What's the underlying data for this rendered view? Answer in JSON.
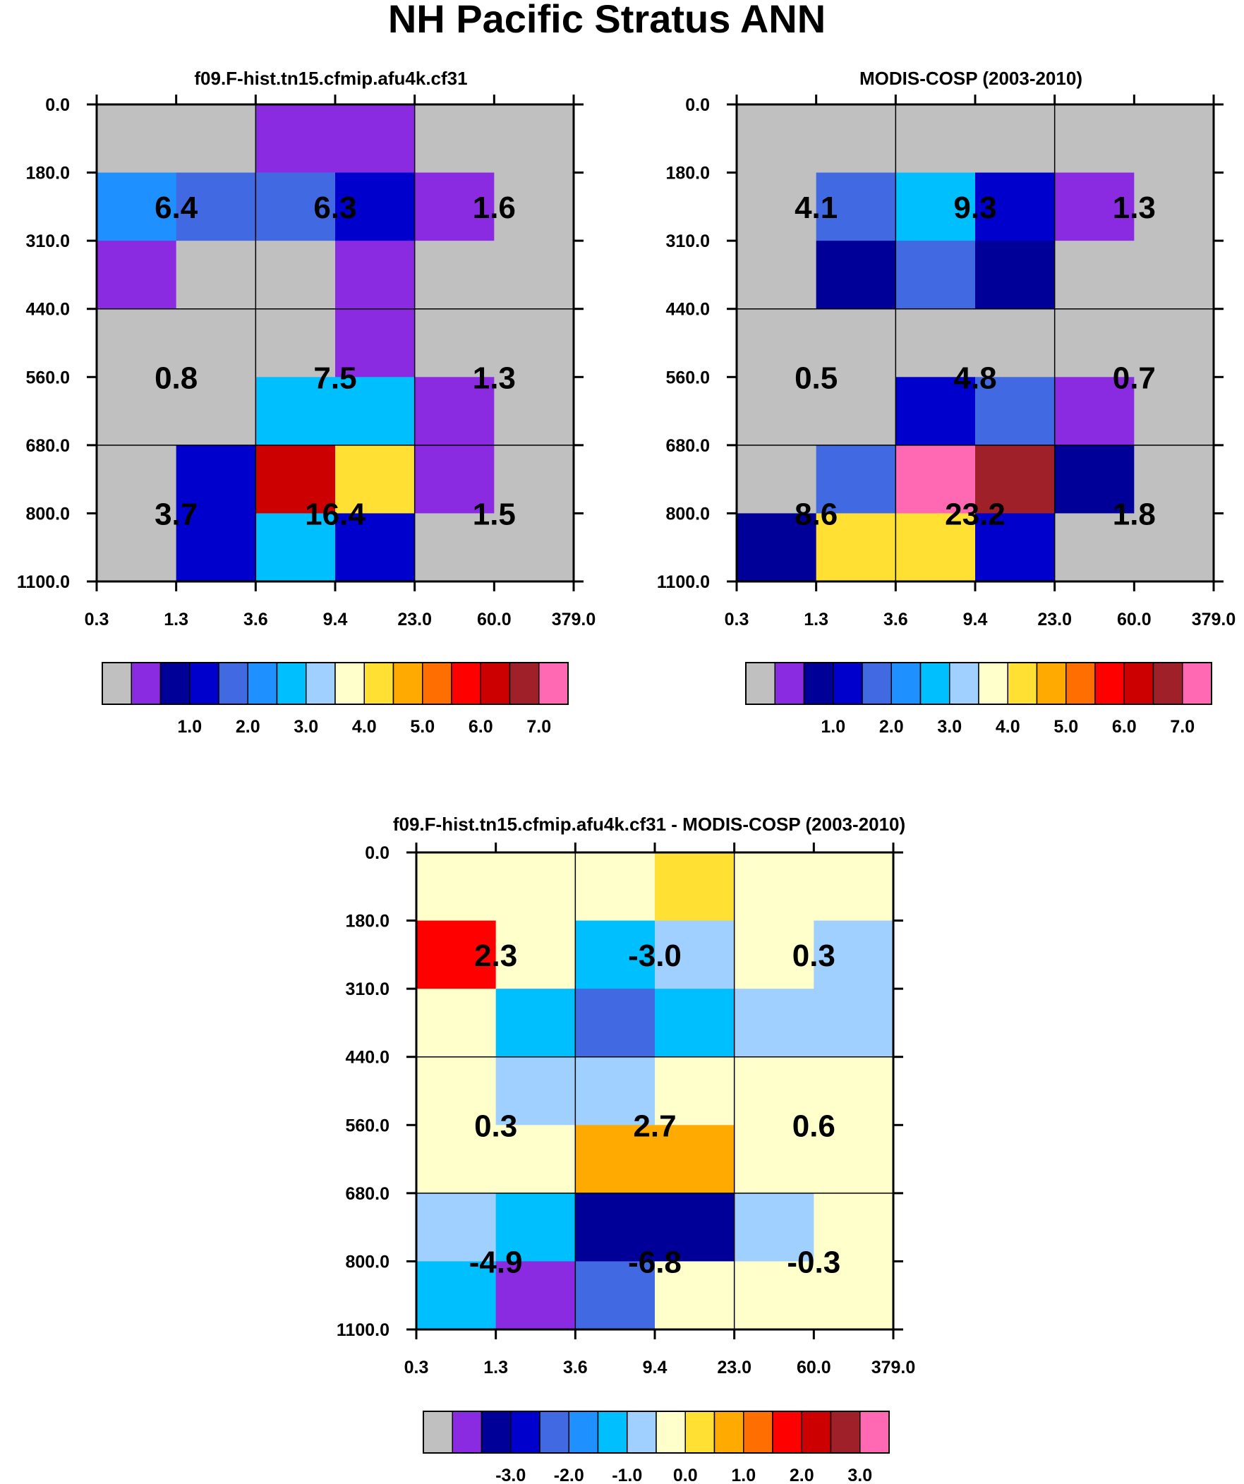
{
  "title": "NH Pacific Stratus ANN",
  "palette": [
    "#c0c0c0",
    "#8a2be2",
    "#000099",
    "#0000cd",
    "#4169e1",
    "#1e90ff",
    "#00bfff",
    "#a0d0ff",
    "#ffffcc",
    "#ffe033",
    "#ffaa00",
    "#ff6e00",
    "#ff0000",
    "#cc0000",
    "#a0202a",
    "#ff69b4"
  ],
  "chart_data": [
    {
      "type": "heatmap",
      "title": "f09.F-hist.tn15.cfmip.afu4k.cf31",
      "x_tick_labels": [
        "0.3",
        "1.3",
        "3.6",
        "9.4",
        "23.0",
        "60.0",
        "379.0"
      ],
      "y_tick_labels": [
        "0.0",
        "180.0",
        "310.0",
        "440.0",
        "560.0",
        "680.0",
        "800.0",
        "1100.0"
      ],
      "cells": [
        [
          0,
          0,
          1,
          1,
          0,
          0
        ],
        [
          5,
          4,
          4,
          3,
          1,
          0
        ],
        [
          1,
          0,
          0,
          1,
          0,
          0
        ],
        [
          0,
          0,
          0,
          1,
          0,
          0
        ],
        [
          0,
          0,
          6,
          6,
          1,
          0
        ],
        [
          0,
          3,
          13,
          9,
          1,
          0
        ],
        [
          0,
          3,
          6,
          3,
          0,
          0
        ]
      ],
      "block_labels": [
        "6.4",
        "6.3",
        "1.6",
        "0.8",
        "7.5",
        "1.3",
        "3.7",
        "16.4",
        "1.5"
      ],
      "colorbar_labels": [
        "1.0",
        "2.0",
        "3.0",
        "4.0",
        "5.0",
        "6.0",
        "7.0"
      ]
    },
    {
      "type": "heatmap",
      "title": "MODIS-COSP (2003-2010)",
      "x_tick_labels": [
        "0.3",
        "1.3",
        "3.6",
        "9.4",
        "23.0",
        "60.0",
        "379.0"
      ],
      "y_tick_labels": [
        "0.0",
        "180.0",
        "310.0",
        "440.0",
        "560.0",
        "680.0",
        "800.0",
        "1100.0"
      ],
      "cells": [
        [
          0,
          0,
          0,
          0,
          0,
          0
        ],
        [
          0,
          4,
          6,
          3,
          1,
          0
        ],
        [
          0,
          2,
          4,
          2,
          0,
          0
        ],
        [
          0,
          0,
          0,
          0,
          0,
          0
        ],
        [
          0,
          0,
          3,
          4,
          1,
          0
        ],
        [
          0,
          4,
          15,
          14,
          2,
          0
        ],
        [
          2,
          9,
          9,
          3,
          0,
          0
        ]
      ],
      "block_labels": [
        "4.1",
        "9.3",
        "1.3",
        "0.5",
        "4.8",
        "0.7",
        "8.6",
        "23.2",
        "1.8"
      ],
      "colorbar_labels": [
        "1.0",
        "2.0",
        "3.0",
        "4.0",
        "5.0",
        "6.0",
        "7.0"
      ]
    },
    {
      "type": "heatmap",
      "title": "f09.F-hist.tn15.cfmip.afu4k.cf31 - MODIS-COSP (2003-2010)",
      "x_tick_labels": [
        "0.3",
        "1.3",
        "3.6",
        "9.4",
        "23.0",
        "60.0",
        "379.0"
      ],
      "y_tick_labels": [
        "0.0",
        "180.0",
        "310.0",
        "440.0",
        "560.0",
        "680.0",
        "800.0",
        "1100.0"
      ],
      "cells": [
        [
          8,
          8,
          8,
          9,
          8,
          8
        ],
        [
          12,
          8,
          6,
          7,
          8,
          7
        ],
        [
          8,
          6,
          4,
          6,
          7,
          7
        ],
        [
          8,
          7,
          7,
          8,
          8,
          8
        ],
        [
          8,
          8,
          10,
          10,
          8,
          8
        ],
        [
          7,
          6,
          2,
          2,
          7,
          8
        ],
        [
          6,
          1,
          4,
          8,
          8,
          8
        ]
      ],
      "block_labels": [
        "2.3",
        "-3.0",
        "0.3",
        "0.3",
        "2.7",
        "0.6",
        "-4.9",
        "-6.8",
        "-0.3"
      ],
      "colorbar_labels": [
        "-3.0",
        "-2.0",
        "-1.0",
        "0.0",
        "1.0",
        "2.0",
        "3.0"
      ]
    }
  ]
}
